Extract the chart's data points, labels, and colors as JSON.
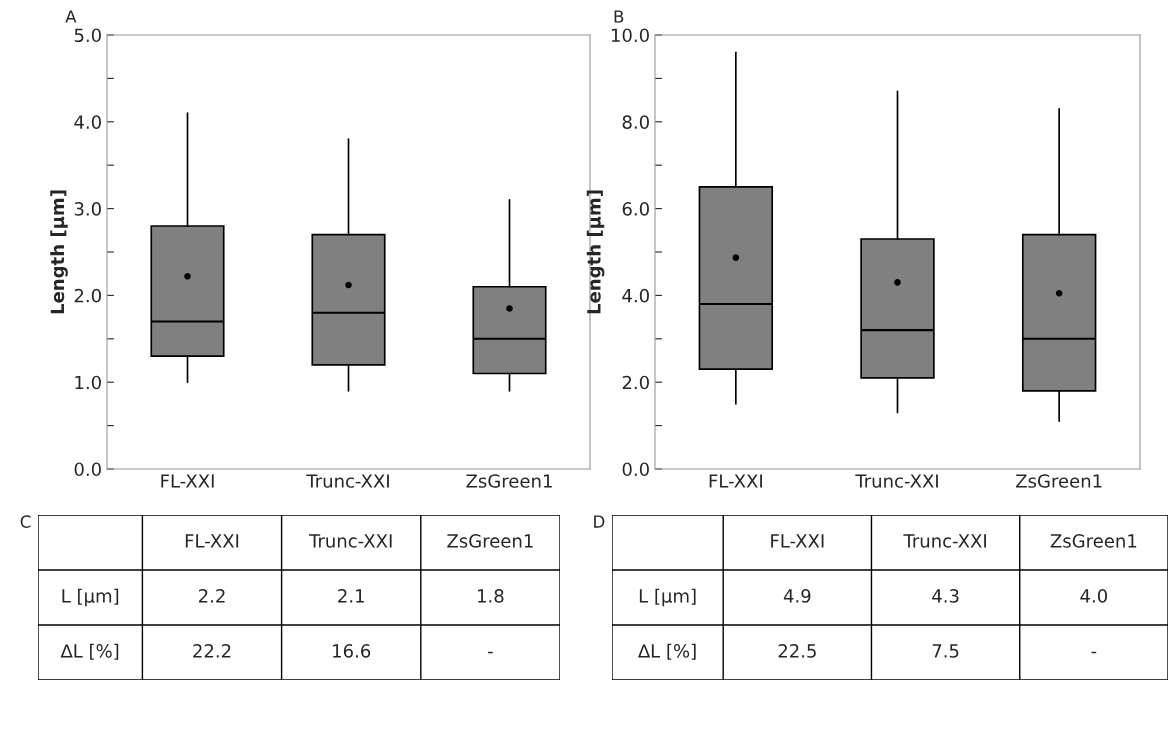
{
  "chart_data": [
    {
      "type": "box",
      "title": "A",
      "ylabel": "Length [µm]",
      "categories": [
        "FL-XXI",
        "Trunc-XXI",
        "ZsGreen1"
      ],
      "color": "#808080",
      "boxes": [
        {
          "low": 1.0,
          "q1": 1.3,
          "median": 1.7,
          "q3": 2.8,
          "high": 4.1,
          "mean": 2.22
        },
        {
          "low": 0.9,
          "q1": 1.2,
          "median": 1.8,
          "q3": 2.7,
          "high": 3.8,
          "mean": 2.12
        },
        {
          "low": 0.9,
          "q1": 1.1,
          "median": 1.5,
          "q3": 2.1,
          "high": 3.1,
          "mean": 1.85
        }
      ],
      "ylim": [
        0,
        5
      ],
      "yticks": [
        {
          "value": 0,
          "label": "0.0"
        },
        {
          "value": 0.5,
          "label": null
        },
        {
          "value": 1,
          "label": "1.0"
        },
        {
          "value": 1.5,
          "label": null
        },
        {
          "value": 2,
          "label": "2.0"
        },
        {
          "value": 2.5,
          "label": null
        },
        {
          "value": 3,
          "label": "3.0"
        },
        {
          "value": 3.5,
          "label": null
        },
        {
          "value": 4,
          "label": "4.0"
        },
        {
          "value": 4.5,
          "label": null
        },
        {
          "value": 5,
          "label": "5.0"
        }
      ],
      "grid": false
    },
    {
      "type": "box",
      "title": "B",
      "ylabel": "Length [µm]",
      "categories": [
        "FL-XXI",
        "Trunc-XXI",
        "ZsGreen1"
      ],
      "color": "#808080",
      "boxes": [
        {
          "low": 1.5,
          "q1": 2.3,
          "median": 3.8,
          "q3": 6.5,
          "high": 9.6,
          "mean": 4.87
        },
        {
          "low": 1.3,
          "q1": 2.1,
          "median": 3.2,
          "q3": 5.3,
          "high": 8.7,
          "mean": 4.3
        },
        {
          "low": 1.1,
          "q1": 1.8,
          "median": 3.0,
          "q3": 5.4,
          "high": 8.3,
          "mean": 4.05
        }
      ],
      "ylim": [
        0,
        10
      ],
      "yticks": [
        {
          "value": 0,
          "label": "0.0"
        },
        {
          "value": 1,
          "label": null
        },
        {
          "value": 2,
          "label": "2.0"
        },
        {
          "value": 3,
          "label": null
        },
        {
          "value": 4,
          "label": "4.0"
        },
        {
          "value": 5,
          "label": null
        },
        {
          "value": 6,
          "label": "6.0"
        },
        {
          "value": 7,
          "label": null
        },
        {
          "value": 8,
          "label": "8.0"
        },
        {
          "value": 9,
          "label": null
        },
        {
          "value": 10,
          "label": "10.0"
        }
      ],
      "grid": false
    },
    {
      "type": "other",
      "title": "C",
      "categories": [
        "FL-XXI",
        "Trunc-XXI",
        "ZsGreen1"
      ],
      "y_categories": [
        "L [µm]",
        "∆L [%]"
      ],
      "cell_labels": [
        [
          "2.2",
          "2.1",
          "1.8"
        ],
        [
          "22.2",
          "16.6",
          "-"
        ]
      ]
    },
    {
      "type": "other",
      "title": "D",
      "categories": [
        "FL-XXI",
        "Trunc-XXI",
        "ZsGreen1"
      ],
      "y_categories": [
        "L [µm]",
        "∆L [%]"
      ],
      "cell_labels": [
        [
          "4.9",
          "4.3",
          "4.0"
        ],
        [
          "22.5",
          "7.5",
          "-"
        ]
      ]
    }
  ]
}
